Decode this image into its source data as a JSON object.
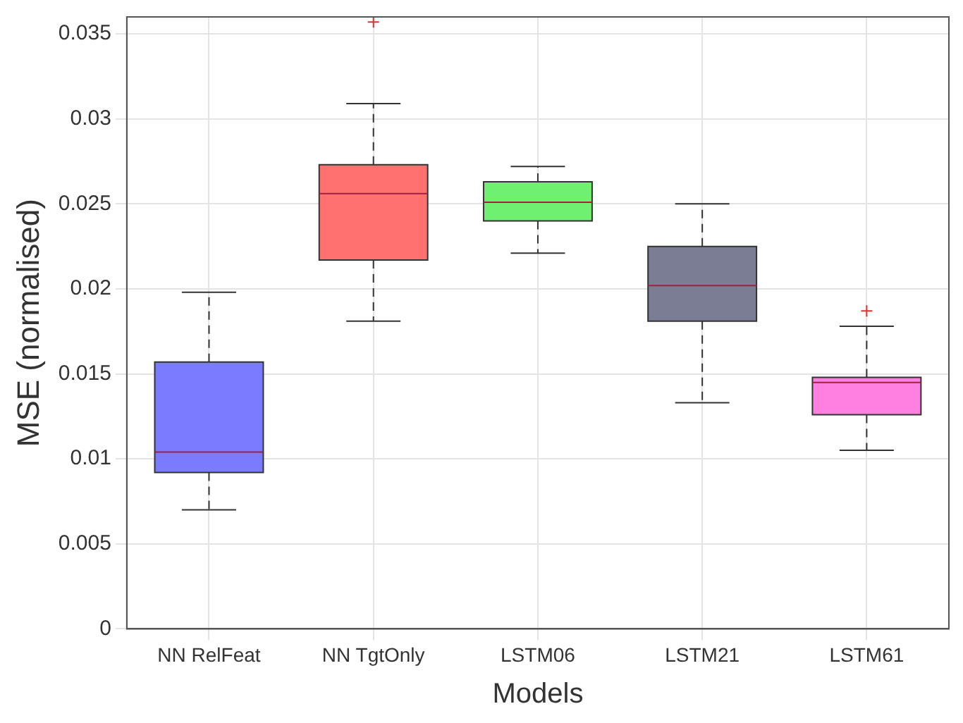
{
  "chart_data": {
    "type": "box",
    "xlabel": "Models",
    "ylabel": "MSE (normalised)",
    "categories": [
      "NN RelFeat",
      "NN TgtOnly",
      "LSTM06",
      "LSTM21",
      "LSTM61"
    ],
    "colors": [
      "#7b7bff",
      "#ff7070",
      "#70f070",
      "#7a7d93",
      "#ff80e0"
    ],
    "boxes": [
      {
        "low": 0.007,
        "q1": 0.0092,
        "median": 0.0104,
        "q3": 0.0157,
        "high": 0.0198
      },
      {
        "low": 0.0181,
        "q1": 0.0217,
        "median": 0.0256,
        "q3": 0.0273,
        "high": 0.0309,
        "outliers": [
          0.0357
        ]
      },
      {
        "low": 0.0221,
        "q1": 0.024,
        "median": 0.0251,
        "q3": 0.0263,
        "high": 0.0272
      },
      {
        "low": 0.0133,
        "q1": 0.0181,
        "median": 0.0202,
        "q3": 0.0225,
        "high": 0.025
      },
      {
        "low": 0.0105,
        "q1": 0.0126,
        "median": 0.0145,
        "q3": 0.0148,
        "high": 0.0178,
        "outliers": [
          0.0187
        ]
      }
    ],
    "ylim": [
      0,
      0.036
    ],
    "yticks": [
      0,
      0.005,
      0.01,
      0.015,
      0.02,
      0.025,
      0.03,
      0.035
    ],
    "grid": true,
    "legend": false
  }
}
